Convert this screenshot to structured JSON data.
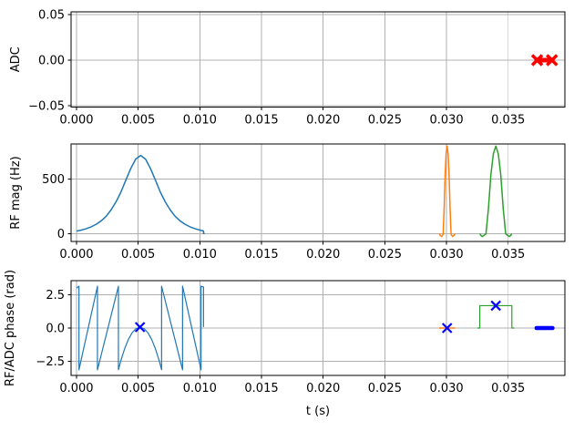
{
  "figure": {
    "xlabel": "t (s)",
    "background": "#ffffff",
    "grid_color": "#b0b0b0",
    "axis_color": "#000000",
    "blue": "#1f77b4",
    "orange": "#ff7f0e",
    "green": "#2ca02c",
    "red": "#ff0000",
    "marker_blue": "#0000ff"
  },
  "chart_data": [
    {
      "type": "line",
      "name": "adc-subplot",
      "ylabel": "ADC",
      "xlim": [
        -0.00044,
        0.0396
      ],
      "ylim": [
        -0.0515,
        0.053
      ],
      "grid": true,
      "xtick_values": [
        0,
        0.005,
        0.01,
        0.015,
        0.02,
        0.025,
        0.03,
        0.035
      ],
      "xtick_labels": [
        "0.000",
        "0.005",
        "0.010",
        "0.015",
        "0.020",
        "0.025",
        "0.030",
        "0.035"
      ],
      "ytick_values": [
        0.05,
        0,
        -0.05
      ],
      "ytick_labels": [
        "0.05",
        "0.00",
        "−0.05"
      ],
      "series": [
        {
          "name": "adc-readout-event",
          "color": "#ff0000",
          "width": 5,
          "cap": "butt",
          "points": [
            [
              0.0372,
              0
            ],
            [
              0.0387,
              0
            ]
          ]
        }
      ],
      "markers": [
        {
          "name": "adc-readout-endpoint-markers",
          "type": "x",
          "color": "#ff0000",
          "size": 5.5,
          "stroke": 3.5,
          "points": [
            [
              0.03735,
              0
            ],
            [
              0.03855,
              0
            ]
          ]
        }
      ]
    },
    {
      "type": "line",
      "name": "rf-mag-subplot",
      "ylabel": "RF mag (Hz)",
      "xlim": [
        -0.00044,
        0.0396
      ],
      "ylim": [
        -70,
        820
      ],
      "grid": true,
      "xtick_values": [
        0,
        0.005,
        0.01,
        0.015,
        0.02,
        0.025,
        0.03,
        0.035
      ],
      "xtick_labels": [
        "0.000",
        "0.005",
        "0.010",
        "0.015",
        "0.020",
        "0.025",
        "0.030",
        "0.035"
      ],
      "ytick_values": [
        500,
        0
      ],
      "ytick_labels": [
        "500",
        "0"
      ],
      "series": [
        {
          "name": "rf-pulse-1-magnitude",
          "color": "#1f77b4",
          "width": 1.5,
          "cap": "butt",
          "points": [
            [
              0.0,
              25
            ],
            [
              0.0004,
              34
            ],
            [
              0.0008,
              47
            ],
            [
              0.0012,
              64
            ],
            [
              0.0016,
              87
            ],
            [
              0.002,
              118
            ],
            [
              0.0024,
              159
            ],
            [
              0.0028,
              218
            ],
            [
              0.0032,
              291
            ],
            [
              0.0036,
              380
            ],
            [
              0.004,
              490
            ],
            [
              0.0044,
              596
            ],
            [
              0.0048,
              682
            ],
            [
              0.0052,
              715
            ],
            [
              0.0056,
              682
            ],
            [
              0.006,
              596
            ],
            [
              0.0064,
              490
            ],
            [
              0.0068,
              380
            ],
            [
              0.0072,
              291
            ],
            [
              0.0076,
              218
            ],
            [
              0.008,
              159
            ],
            [
              0.0084,
              118
            ],
            [
              0.0088,
              87
            ],
            [
              0.0092,
              64
            ],
            [
              0.0096,
              47
            ],
            [
              0.01,
              34
            ],
            [
              0.0103,
              26
            ],
            [
              0.0103,
              3
            ],
            [
              0.0104,
              3
            ]
          ]
        },
        {
          "name": "rf-pulse-2-magnitude",
          "color": "#ff7f0e",
          "width": 1.5,
          "cap": "butt",
          "points": [
            [
              0.02941,
              0
            ],
            [
              0.02949,
              -14
            ],
            [
              0.0296,
              -25
            ],
            [
              0.02969,
              -12
            ],
            [
              0.02973,
              0
            ],
            [
              0.02981,
              230
            ],
            [
              0.02989,
              540
            ],
            [
              0.02997,
              730
            ],
            [
              0.03005,
              800
            ],
            [
              0.03013,
              730
            ],
            [
              0.03021,
              540
            ],
            [
              0.03029,
              230
            ],
            [
              0.03037,
              0
            ],
            [
              0.03041,
              -12
            ],
            [
              0.0305,
              -25
            ],
            [
              0.03061,
              -14
            ],
            [
              0.03069,
              0
            ]
          ]
        },
        {
          "name": "rf-pulse-3-magnitude",
          "color": "#2ca02c",
          "width": 1.5,
          "cap": "butt",
          "points": [
            [
              0.0327,
              0
            ],
            [
              0.03282,
              -18
            ],
            [
              0.0329,
              -25
            ],
            [
              0.03307,
              -12
            ],
            [
              0.0332,
              0
            ],
            [
              0.0334,
              230
            ],
            [
              0.0336,
              540
            ],
            [
              0.0338,
              730
            ],
            [
              0.034,
              800
            ],
            [
              0.0342,
              730
            ],
            [
              0.0344,
              540
            ],
            [
              0.0346,
              230
            ],
            [
              0.0348,
              0
            ],
            [
              0.03493,
              -12
            ],
            [
              0.0351,
              -25
            ],
            [
              0.03518,
              -18
            ],
            [
              0.0353,
              0
            ]
          ]
        }
      ],
      "markers": []
    },
    {
      "type": "line",
      "name": "phase-subplot",
      "ylabel": "RF/ADC phase (rad)",
      "xlabel": "t (s)",
      "xlim": [
        -0.00044,
        0.0396
      ],
      "ylim": [
        -3.56,
        3.56
      ],
      "grid": true,
      "xtick_values": [
        0,
        0.005,
        0.01,
        0.015,
        0.02,
        0.025,
        0.03,
        0.035
      ],
      "xtick_labels": [
        "0.000",
        "0.005",
        "0.010",
        "0.015",
        "0.020",
        "0.025",
        "0.030",
        "0.035"
      ],
      "ytick_values": [
        2.5,
        0,
        -2.5
      ],
      "ytick_labels": [
        "2.5",
        "0.0",
        "−2.5"
      ],
      "series": [
        {
          "name": "rf-pulse-1-phase",
          "color": "#1f77b4",
          "width": 1.2,
          "cap": "butt",
          "points": [
            [
              0.0,
              3.0
            ],
            [
              0.0002,
              3.14
            ],
            [
              0.0002,
              -3.14
            ],
            [
              0.0017,
              3.14
            ],
            [
              0.0017,
              -3.14
            ],
            [
              0.0034,
              3.14
            ],
            [
              0.0034,
              -3.13
            ],
            [
              0.0036,
              -2.44
            ],
            [
              0.0039,
              -1.56
            ],
            [
              0.0042,
              -0.87
            ],
            [
              0.0045,
              -0.37
            ],
            [
              0.0048,
              -0.06
            ],
            [
              0.00515,
              0.07
            ],
            [
              0.0055,
              -0.06
            ],
            [
              0.0058,
              -0.37
            ],
            [
              0.0061,
              -0.87
            ],
            [
              0.0064,
              -1.56
            ],
            [
              0.0067,
              -2.44
            ],
            [
              0.0069,
              -3.13
            ],
            [
              0.0069,
              3.14
            ],
            [
              0.0086,
              -3.14
            ],
            [
              0.0086,
              3.14
            ],
            [
              0.0101,
              -3.14
            ],
            [
              0.0101,
              3.14
            ],
            [
              0.0103,
              3.08
            ],
            [
              0.0103,
              0.08
            ]
          ]
        },
        {
          "name": "rf-pulse-2-phase",
          "color": "#ff7f0e",
          "width": 1.5,
          "cap": "butt",
          "points": [
            [
              0.0294,
              0
            ],
            [
              0.0307,
              0
            ]
          ]
        },
        {
          "name": "rf-pulse-3-phase",
          "color": "#2ca02c",
          "width": 1.2,
          "cap": "butt",
          "points": [
            [
              0.0325,
              0
            ],
            [
              0.0327,
              0
            ],
            [
              0.0327,
              1.68
            ],
            [
              0.0353,
              1.68
            ],
            [
              0.0353,
              0
            ],
            [
              0.0355,
              0
            ]
          ]
        },
        {
          "name": "adc-phase",
          "color": "#0000ff",
          "width": 4.5,
          "cap": "round",
          "points": [
            [
              0.0373,
              0
            ],
            [
              0.0386,
              0
            ]
          ]
        }
      ],
      "markers": [
        {
          "name": "pulse-center-markers",
          "type": "x",
          "color": "#0000ff",
          "size": 5,
          "stroke": 2.2,
          "points": [
            [
              0.00515,
              0.07
            ],
            [
              0.03005,
              0
            ],
            [
              0.034,
              1.68
            ]
          ]
        }
      ]
    }
  ]
}
